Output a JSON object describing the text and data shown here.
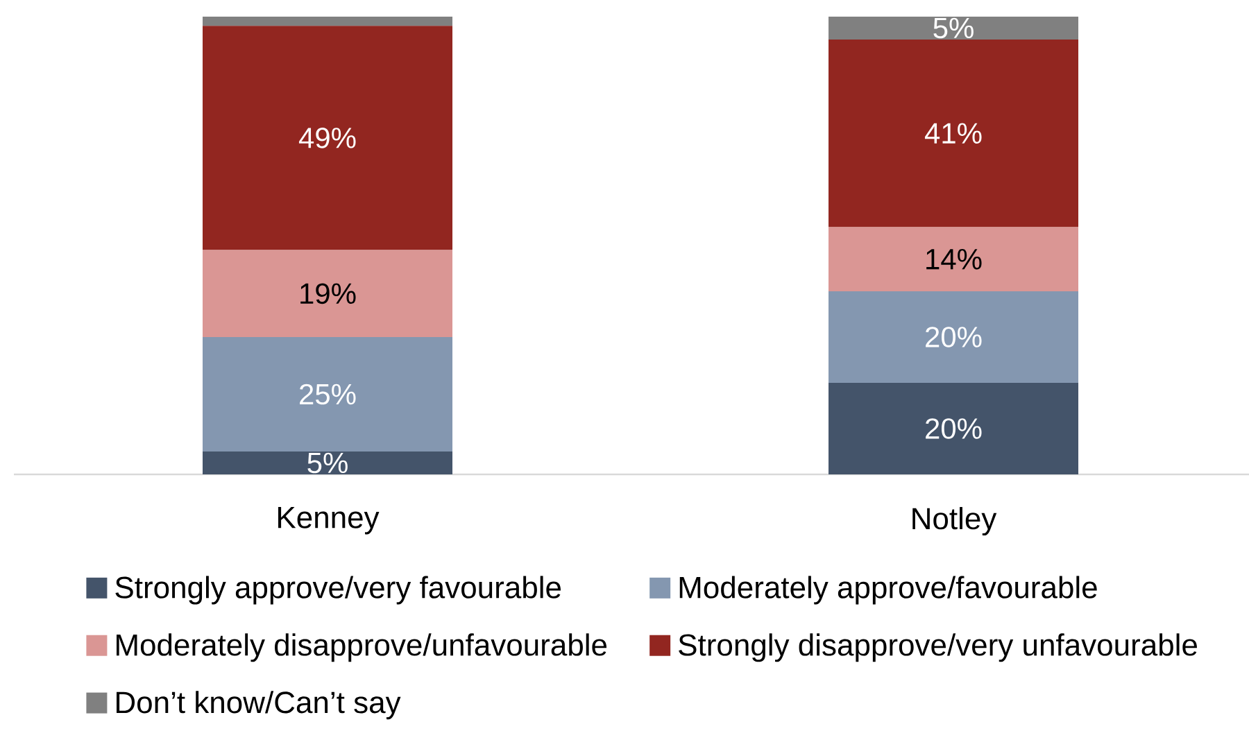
{
  "chart_data": {
    "type": "bar",
    "stacked": true,
    "categories": [
      "Kenney",
      "Notley"
    ],
    "series": [
      {
        "name": "Strongly approve/very favourable",
        "color": "#44546a",
        "values": [
          5,
          20
        ],
        "value_labels": [
          "5%",
          "20%"
        ]
      },
      {
        "name": "Moderately approve/favourable",
        "color": "#8497b0",
        "values": [
          25,
          20
        ],
        "value_labels": [
          "25%",
          "20%"
        ]
      },
      {
        "name": "Moderately disapprove/unfavourable",
        "color": "#da9694",
        "values": [
          19,
          14
        ],
        "value_labels": [
          "19%",
          "14%"
        ]
      },
      {
        "name": "Strongly disapprove/very unfavourable",
        "color": "#922620",
        "values": [
          49,
          41
        ],
        "value_labels": [
          "49%",
          "41%"
        ]
      },
      {
        "name": "Don’t know/Can’t say",
        "color": "#808080",
        "values": [
          2,
          5
        ],
        "value_labels": [
          null,
          "5%"
        ]
      }
    ],
    "tick_labels": "x",
    "legend": "bottom"
  }
}
